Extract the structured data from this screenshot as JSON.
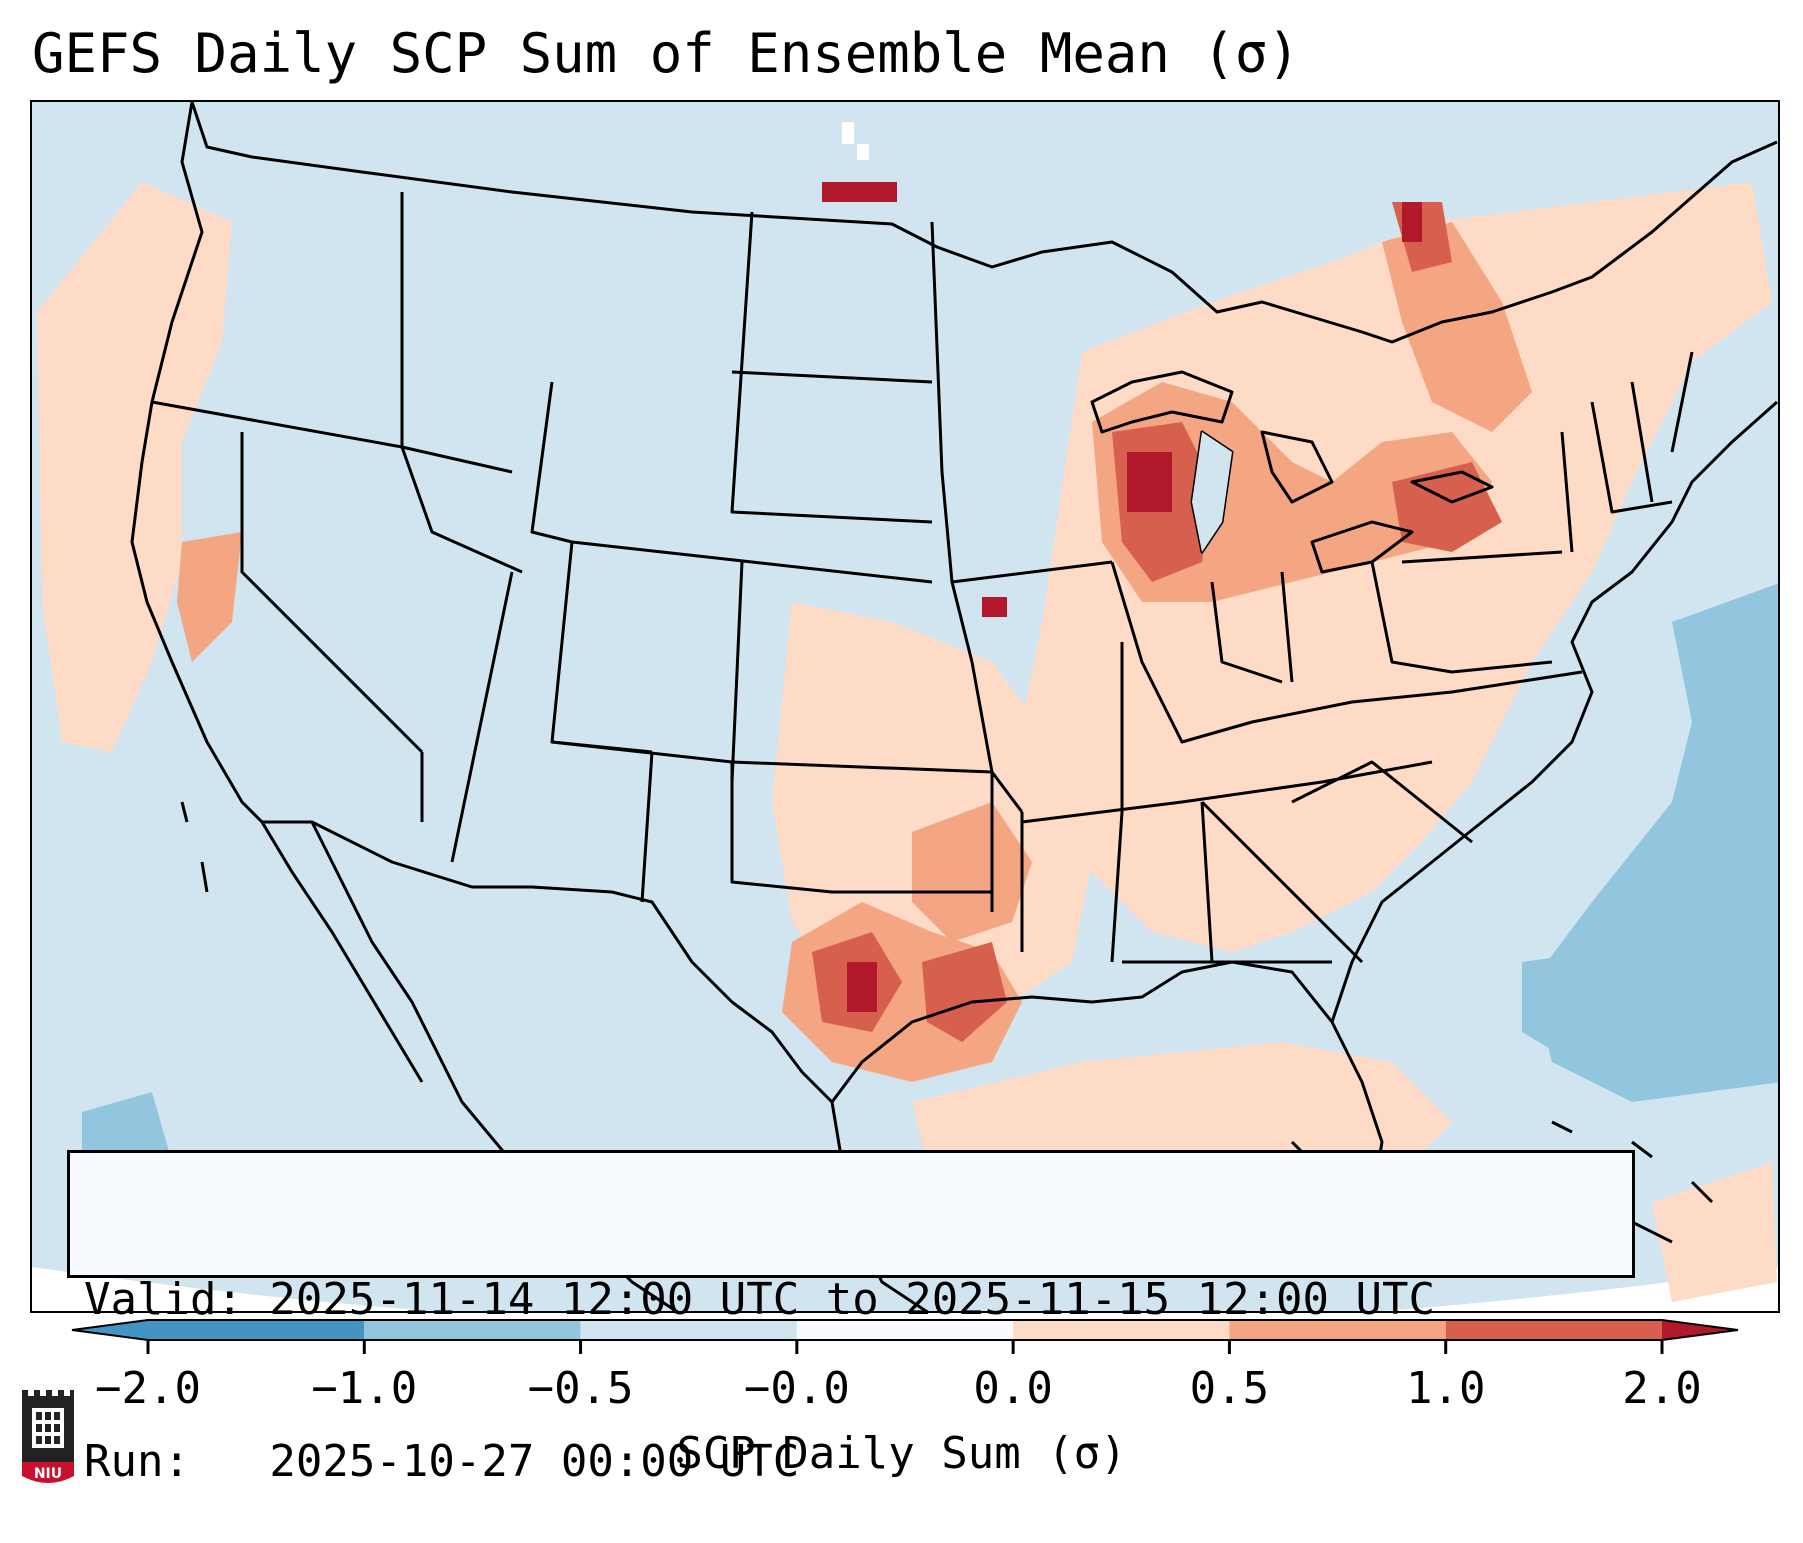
{
  "title": "GEFS Daily SCP Sum of Ensemble Mean (σ)",
  "info": {
    "valid_line": "Valid: 2025-11-14 12:00 UTC to 2025-11-15 12:00 UTC",
    "run_line": "Run:   2025-10-27 00:00 UTC"
  },
  "colorbar": {
    "label": "SCP Daily Sum (σ)",
    "ticks": [
      "−2.0",
      "−1.0",
      "−0.5",
      "−0.0",
      "0.0",
      "0.5",
      "1.0",
      "2.0"
    ],
    "colors": [
      "#4393c3",
      "#92c5de",
      "#d1e5f0",
      "#f7fbff",
      "#fddbc7",
      "#f4a582",
      "#d6604d",
      "#b2182b"
    ]
  },
  "logo": {
    "text": "NIU"
  },
  "map": {
    "background_color": "#d1e5f0",
    "line_color": "#000000"
  }
}
